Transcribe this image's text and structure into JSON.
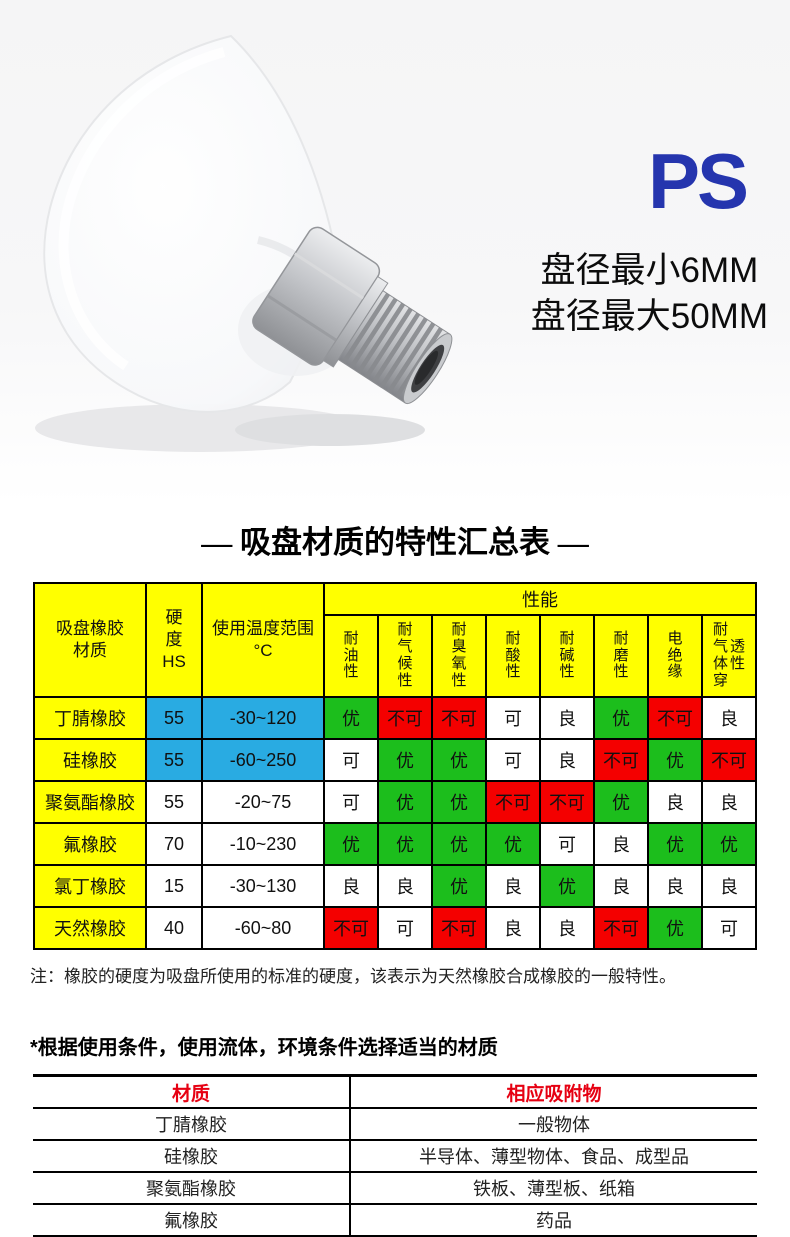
{
  "photo": {
    "brand": "PS",
    "brand_color": "#2535AE",
    "size_lines": [
      "盘径最小6MM",
      "盘径最大50MM"
    ]
  },
  "section_title": "— 吸盘材质的特性汇总表 —",
  "materials_table": {
    "header": {
      "material": [
        "吸盘橡胶",
        "材质"
      ],
      "hardness": [
        "硬",
        "度",
        "HS"
      ],
      "temp": [
        "使用温度范围",
        "°C"
      ],
      "performance": "性能",
      "perf_columns": [
        {
          "segments": [
            "耐油性"
          ]
        },
        {
          "segments": [
            "耐气候性"
          ]
        },
        {
          "segments": [
            "耐臭氧性"
          ]
        },
        {
          "segments": [
            "耐酸性"
          ]
        },
        {
          "segments": [
            "耐碱性"
          ]
        },
        {
          "segments": [
            "耐磨性"
          ]
        },
        {
          "segments": [
            "电绝缘"
          ]
        },
        {
          "segments": [
            "耐气体穿",
            "透性"
          ]
        }
      ]
    },
    "header_bg": "#FFFF00",
    "highlight_color": "#29ABE2",
    "value_colors": {
      "优": "#1CBE1C",
      "不可": "#F40000",
      "可": "#FFFFFF",
      "良": "#FFFFFF"
    },
    "rows": [
      {
        "material": "丁腈橡胶",
        "hardness": "55",
        "temp": "-30~120",
        "highlight": true,
        "values": [
          "优",
          "不可",
          "不可",
          "可",
          "良",
          "优",
          "不可",
          "良"
        ]
      },
      {
        "material": "硅橡胶",
        "hardness": "55",
        "temp": "-60~250",
        "highlight": true,
        "values": [
          "可",
          "优",
          "优",
          "可",
          "良",
          "不可",
          "优",
          "不可"
        ]
      },
      {
        "material": "聚氨酯橡胶",
        "hardness": "55",
        "temp": "-20~75",
        "highlight": false,
        "values": [
          "可",
          "优",
          "优",
          "不可",
          "不可",
          "优",
          "良",
          "良"
        ]
      },
      {
        "material": "氟橡胶",
        "hardness": "70",
        "temp": "-10~230",
        "highlight": false,
        "values": [
          "优",
          "优",
          "优",
          "优",
          "可",
          "良",
          "优",
          "优"
        ]
      },
      {
        "material": "氯丁橡胶",
        "hardness": "15",
        "temp": "-30~130",
        "highlight": false,
        "values": [
          "良",
          "良",
          "优",
          "良",
          "优",
          "良",
          "良",
          "良"
        ]
      },
      {
        "material": "天然橡胶",
        "hardness": "40",
        "temp": "-60~80",
        "highlight": false,
        "values": [
          "不可",
          "可",
          "不可",
          "良",
          "良",
          "不可",
          "优",
          "可"
        ]
      }
    ]
  },
  "note": "注：橡胶的硬度为吸盘所使用的标准的硬度，该表示为天然橡胶合成橡胶的一般特性。",
  "selection_heading": "*根据使用条件，使用流体，环境条件选择适当的材质",
  "application_table": {
    "headers": [
      "材质",
      "相应吸附物"
    ],
    "header_color": "#E60012",
    "rows": [
      [
        "丁腈橡胶",
        "一般物体"
      ],
      [
        "硅橡胶",
        "半导体、薄型物体、食品、成型品"
      ],
      [
        "聚氨酯橡胶",
        "铁板、薄型板、纸箱"
      ],
      [
        "氟橡胶",
        "药品"
      ]
    ]
  }
}
